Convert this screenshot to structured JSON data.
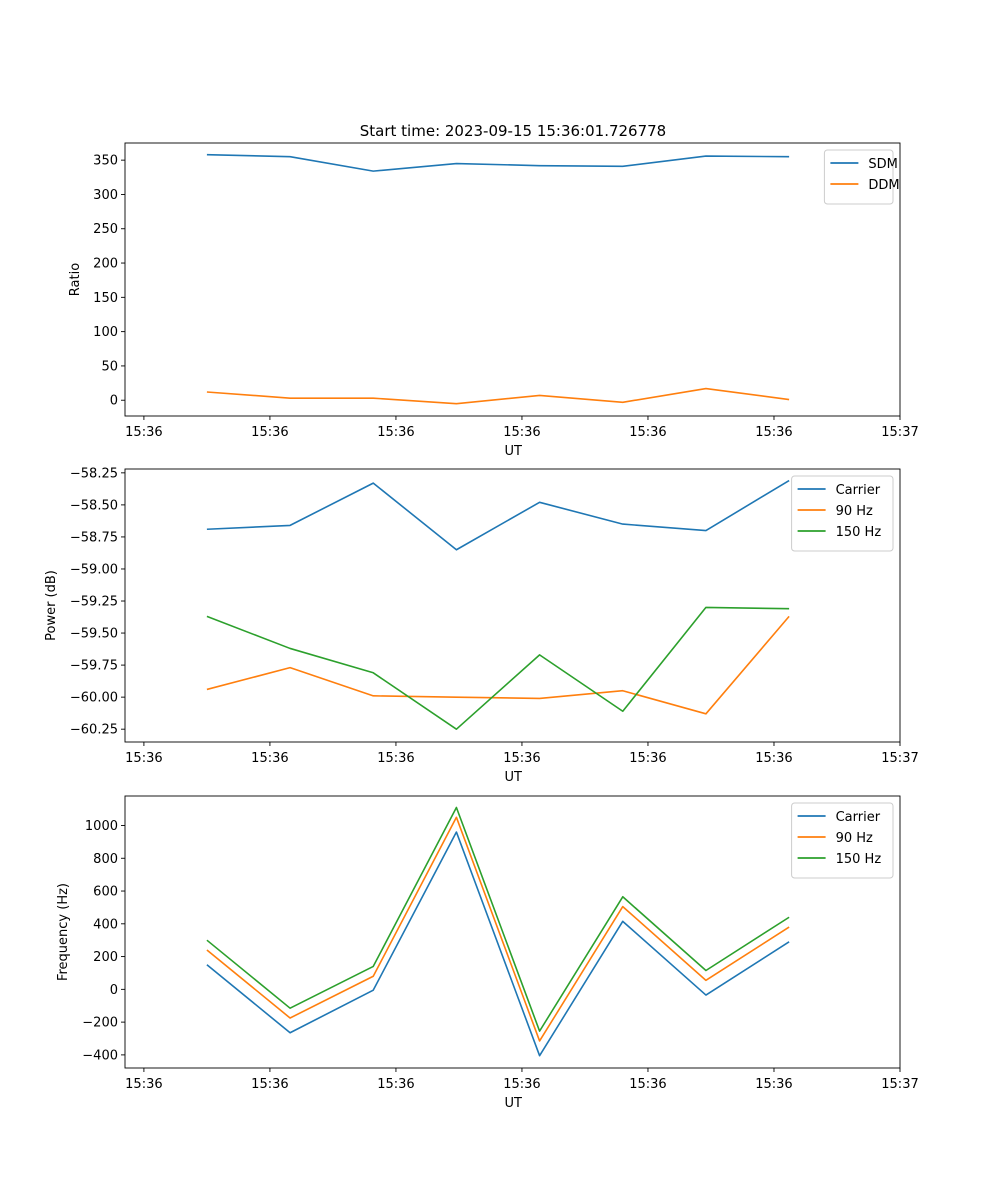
{
  "figure_title": "Start time: 2023-09-15 15:36:01.726778",
  "colors": {
    "blue": "#1f77b4",
    "orange": "#ff7f0e",
    "green": "#2ca02c"
  },
  "chart_data": [
    {
      "type": "line",
      "xlabel": "UT",
      "ylabel": "Ratio",
      "x_tick_labels": [
        "15:36",
        "15:36",
        "15:36",
        "15:36",
        "15:36",
        "15:36",
        "15:37"
      ],
      "x_ticks": [
        0,
        1,
        2,
        3,
        4,
        5,
        6
      ],
      "xlim": [
        -0.15,
        6.0
      ],
      "x": [
        0.5,
        1.16,
        1.82,
        2.48,
        3.14,
        3.8,
        4.46,
        5.12
      ],
      "ylim": [
        -23,
        375
      ],
      "y_ticks": [
        0,
        50,
        100,
        150,
        200,
        250,
        300,
        350
      ],
      "y_tick_labels": [
        "0",
        "50",
        "100",
        "150",
        "200",
        "250",
        "300",
        "350"
      ],
      "legend_position": "top-right",
      "series": [
        {
          "name": "SDM",
          "color": "#1f77b4",
          "values": [
            358,
            355,
            334,
            345,
            342,
            341,
            356,
            355
          ]
        },
        {
          "name": "DDM",
          "color": "#ff7f0e",
          "values": [
            12,
            3,
            3,
            -5,
            7,
            -3,
            17,
            1
          ]
        }
      ]
    },
    {
      "type": "line",
      "xlabel": "UT",
      "ylabel": "Power (dB)",
      "x_tick_labels": [
        "15:36",
        "15:36",
        "15:36",
        "15:36",
        "15:36",
        "15:36",
        "15:37"
      ],
      "x_ticks": [
        0,
        1,
        2,
        3,
        4,
        5,
        6
      ],
      "xlim": [
        -0.15,
        6.0
      ],
      "x": [
        0.5,
        1.16,
        1.82,
        2.48,
        3.14,
        3.8,
        4.46,
        5.12
      ],
      "ylim": [
        -60.35,
        -58.22
      ],
      "y_ticks": [
        -60.25,
        -60.0,
        -59.75,
        -59.5,
        -59.25,
        -59.0,
        -58.75,
        -58.5,
        -58.25
      ],
      "y_tick_labels": [
        "−60.25",
        "−60.00",
        "−59.75",
        "−59.50",
        "−59.25",
        "−59.00",
        "−58.75",
        "−58.50",
        "−58.25"
      ],
      "legend_position": "top-right",
      "series": [
        {
          "name": "Carrier",
          "color": "#1f77b4",
          "values": [
            -58.69,
            -58.66,
            -58.33,
            -58.85,
            -58.48,
            -58.65,
            -58.7,
            -58.31
          ]
        },
        {
          "name": "90 Hz",
          "color": "#ff7f0e",
          "values": [
            -59.94,
            -59.77,
            -59.99,
            -60.0,
            -60.01,
            -59.95,
            -60.13,
            -59.37
          ]
        },
        {
          "name": "150 Hz",
          "color": "#2ca02c",
          "values": [
            -59.37,
            -59.62,
            -59.81,
            -60.25,
            -59.67,
            -60.11,
            -59.3,
            -59.31
          ]
        }
      ]
    },
    {
      "type": "line",
      "xlabel": "UT",
      "ylabel": "Frequency (Hz)",
      "x_tick_labels": [
        "15:36",
        "15:36",
        "15:36",
        "15:36",
        "15:36",
        "15:36",
        "15:37"
      ],
      "x_ticks": [
        0,
        1,
        2,
        3,
        4,
        5,
        6
      ],
      "xlim": [
        -0.15,
        6.0
      ],
      "x": [
        0.5,
        1.16,
        1.82,
        2.48,
        3.14,
        3.8,
        4.46,
        5.12
      ],
      "ylim": [
        -480,
        1180
      ],
      "y_ticks": [
        -400,
        -200,
        0,
        200,
        400,
        600,
        800,
        1000
      ],
      "y_tick_labels": [
        "−400",
        "−200",
        "0",
        "200",
        "400",
        "600",
        "800",
        "1000"
      ],
      "legend_position": "top-right",
      "series": [
        {
          "name": "Carrier",
          "color": "#1f77b4",
          "values": [
            150,
            -265,
            -5,
            960,
            -405,
            415,
            -35,
            290
          ]
        },
        {
          "name": "90 Hz",
          "color": "#ff7f0e",
          "values": [
            240,
            -175,
            80,
            1050,
            -315,
            505,
            55,
            380
          ]
        },
        {
          "name": "150 Hz",
          "color": "#2ca02c",
          "values": [
            300,
            -115,
            140,
            1110,
            -255,
            565,
            115,
            440
          ]
        }
      ]
    }
  ]
}
